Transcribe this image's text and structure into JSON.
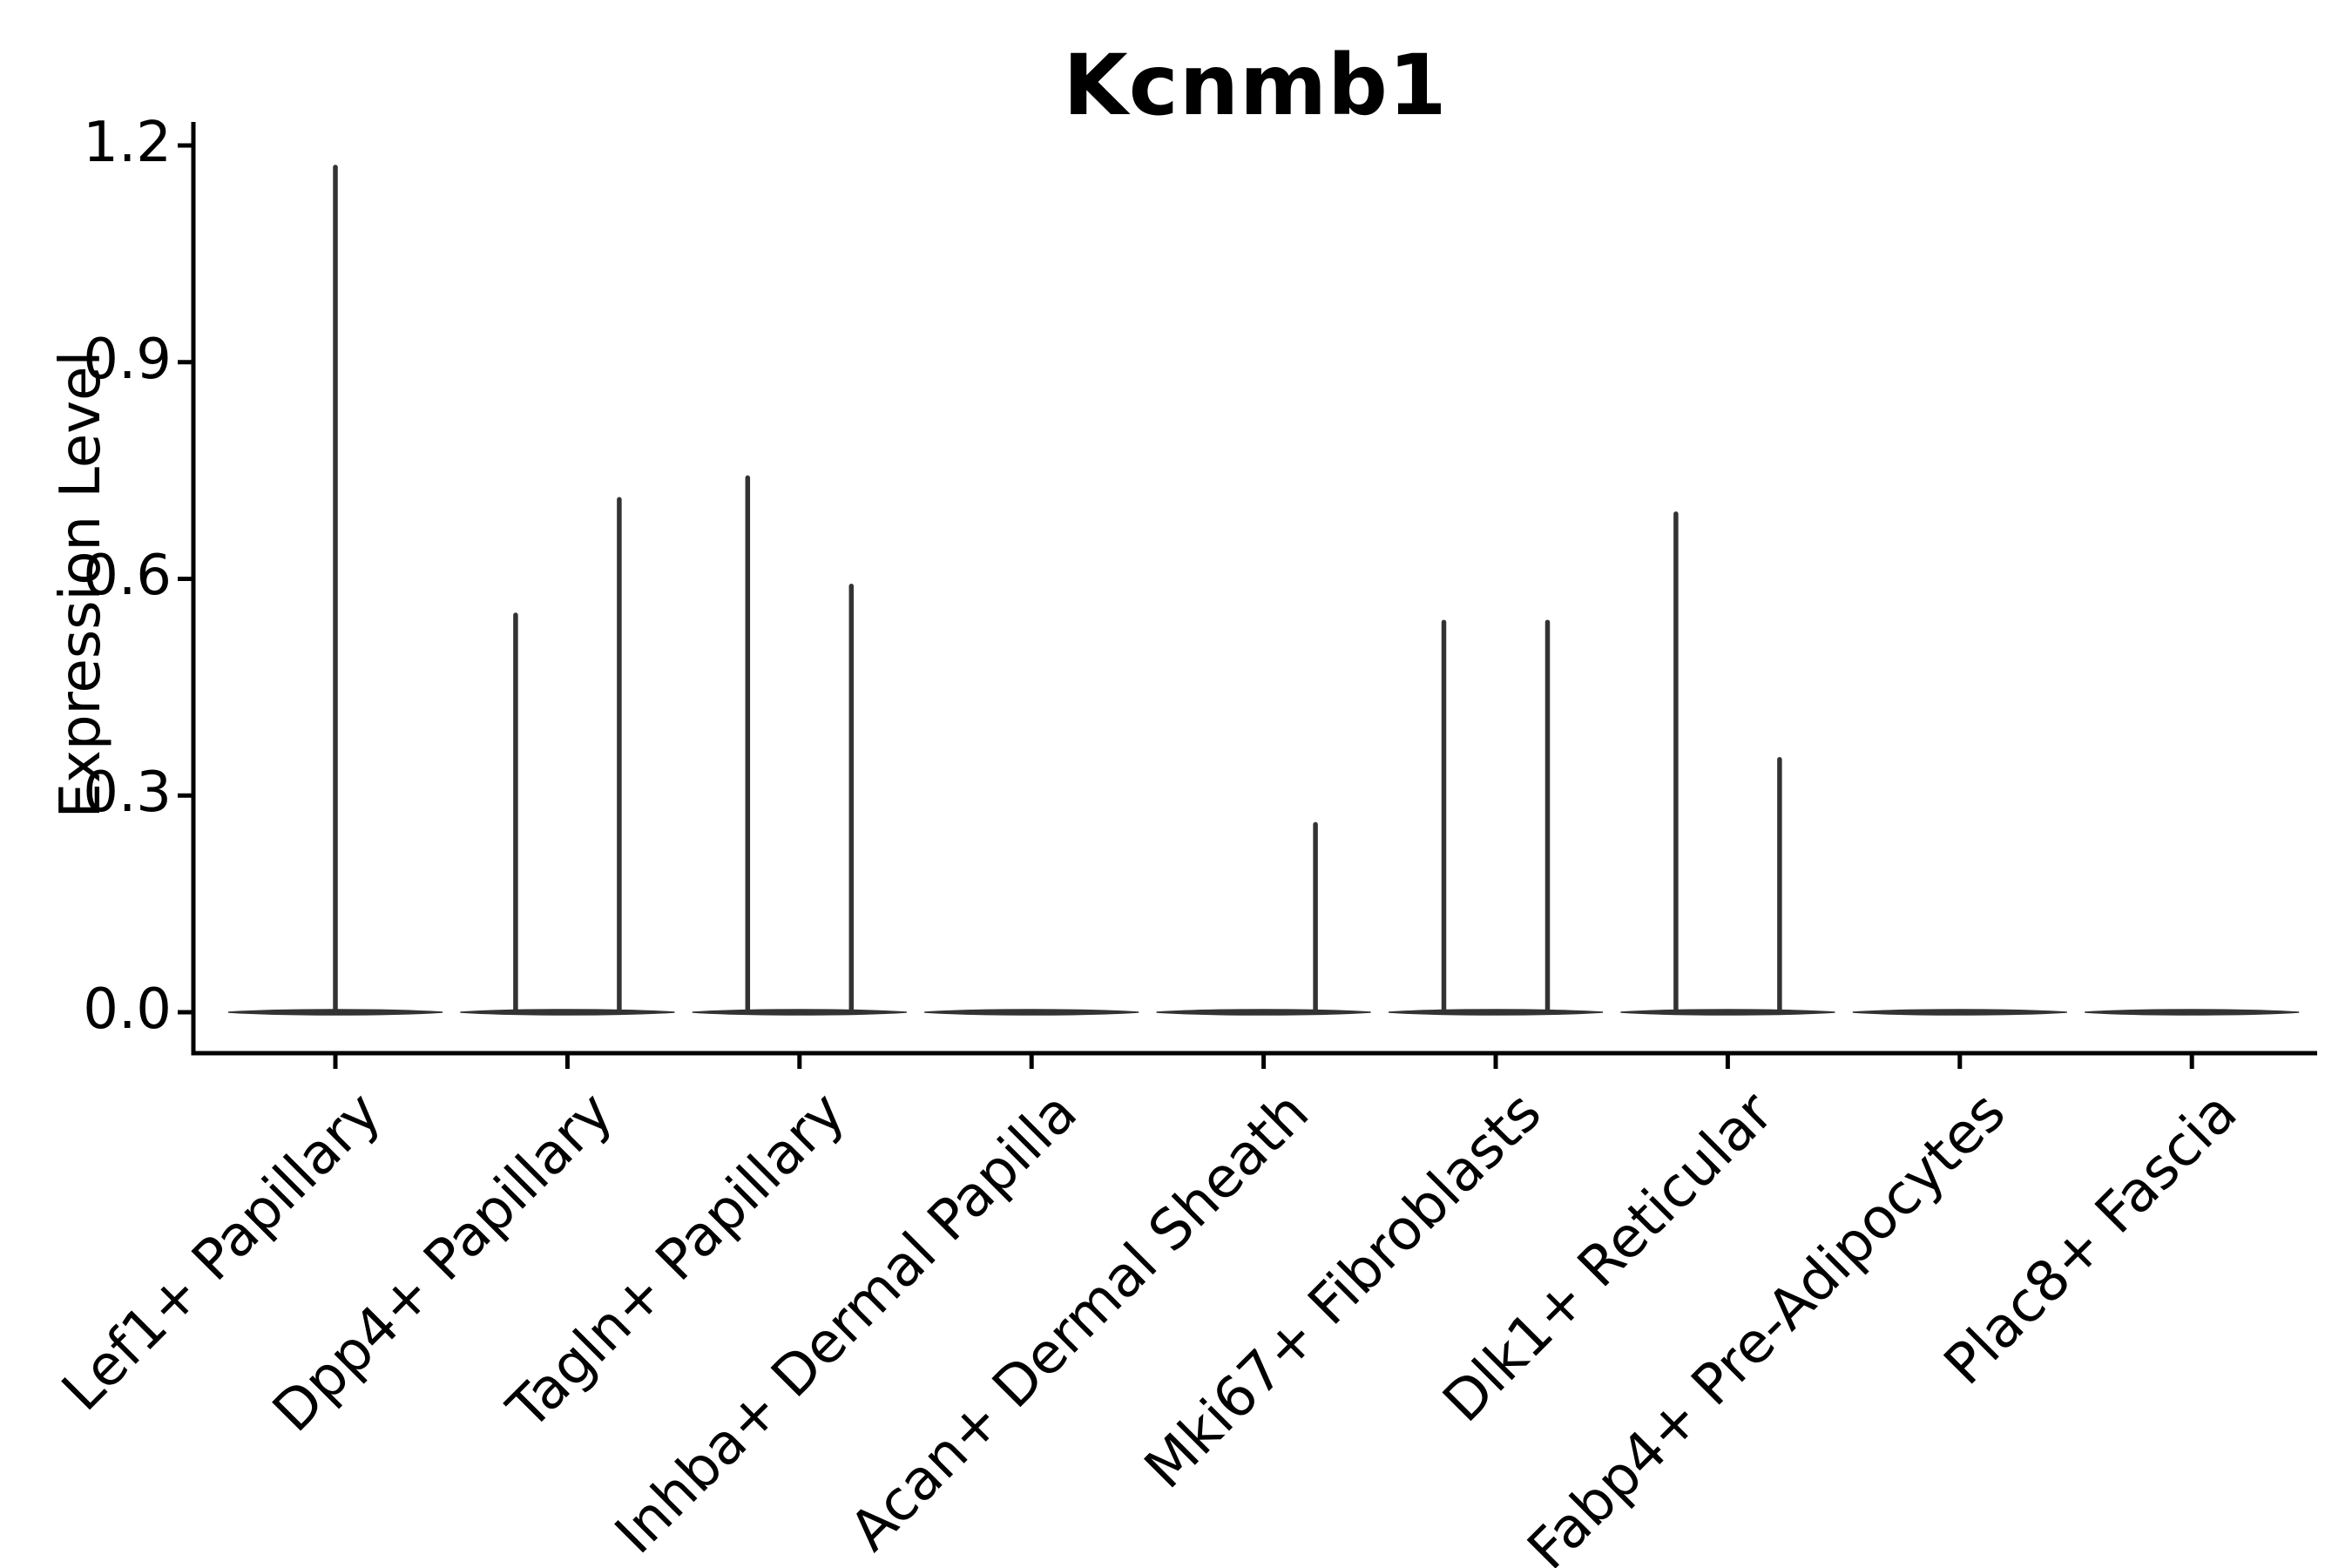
{
  "chart_data": {
    "type": "violin",
    "title": "Kcnmb1",
    "xlabel": "",
    "ylabel": "Expression Level",
    "ylim": [
      0.0,
      1.2
    ],
    "ytick_labels": [
      "0.0",
      "0.3",
      "0.6",
      "0.9",
      "1.2"
    ],
    "ytick_values": [
      0.0,
      0.3,
      0.6,
      0.9,
      1.2
    ],
    "grid": false,
    "legend": null,
    "categories": [
      "Lef1+ Papillary",
      "Dpp4+ Papillary",
      "Tagln+ Papillary",
      "Inhba+ Dermal Papilla",
      "Acan+ Dermal Sheath",
      "Mki67+ Fibroblasts",
      "Dlk1+ Reticular",
      "Fabp4+ Pre-Adipocytes",
      "Plac8+ Fascia"
    ],
    "violins": [
      {
        "category": "Lef1+ Papillary",
        "baseline_value": 0.0,
        "spikes": [
          {
            "position": "center",
            "max": 1.17
          }
        ]
      },
      {
        "category": "Dpp4+ Papillary",
        "baseline_value": 0.0,
        "spikes": [
          {
            "position": "left",
            "max": 0.55
          },
          {
            "position": "right",
            "max": 0.71
          }
        ]
      },
      {
        "category": "Tagln+ Papillary",
        "baseline_value": 0.0,
        "spikes": [
          {
            "position": "left",
            "max": 0.74
          },
          {
            "position": "right",
            "max": 0.59
          }
        ]
      },
      {
        "category": "Inhba+ Dermal Papilla",
        "baseline_value": 0.0,
        "spikes": []
      },
      {
        "category": "Acan+ Dermal Sheath",
        "baseline_value": 0.0,
        "spikes": [
          {
            "position": "right",
            "max": 0.26
          }
        ]
      },
      {
        "category": "Mki67+ Fibroblasts",
        "baseline_value": 0.0,
        "spikes": [
          {
            "position": "left",
            "max": 0.54
          },
          {
            "position": "right",
            "max": 0.54
          }
        ]
      },
      {
        "category": "Dlk1+ Reticular",
        "baseline_value": 0.0,
        "spikes": [
          {
            "position": "left",
            "max": 0.69
          },
          {
            "position": "right",
            "max": 0.35
          }
        ]
      },
      {
        "category": "Fabp4+ Pre-Adipocytes",
        "baseline_value": 0.0,
        "spikes": []
      },
      {
        "category": "Plac8+ Fascia",
        "baseline_value": 0.0,
        "spikes": []
      }
    ],
    "colors": {
      "violin": "#333333",
      "axis": "#000000",
      "text": "#000000",
      "background": "#ffffff"
    }
  }
}
